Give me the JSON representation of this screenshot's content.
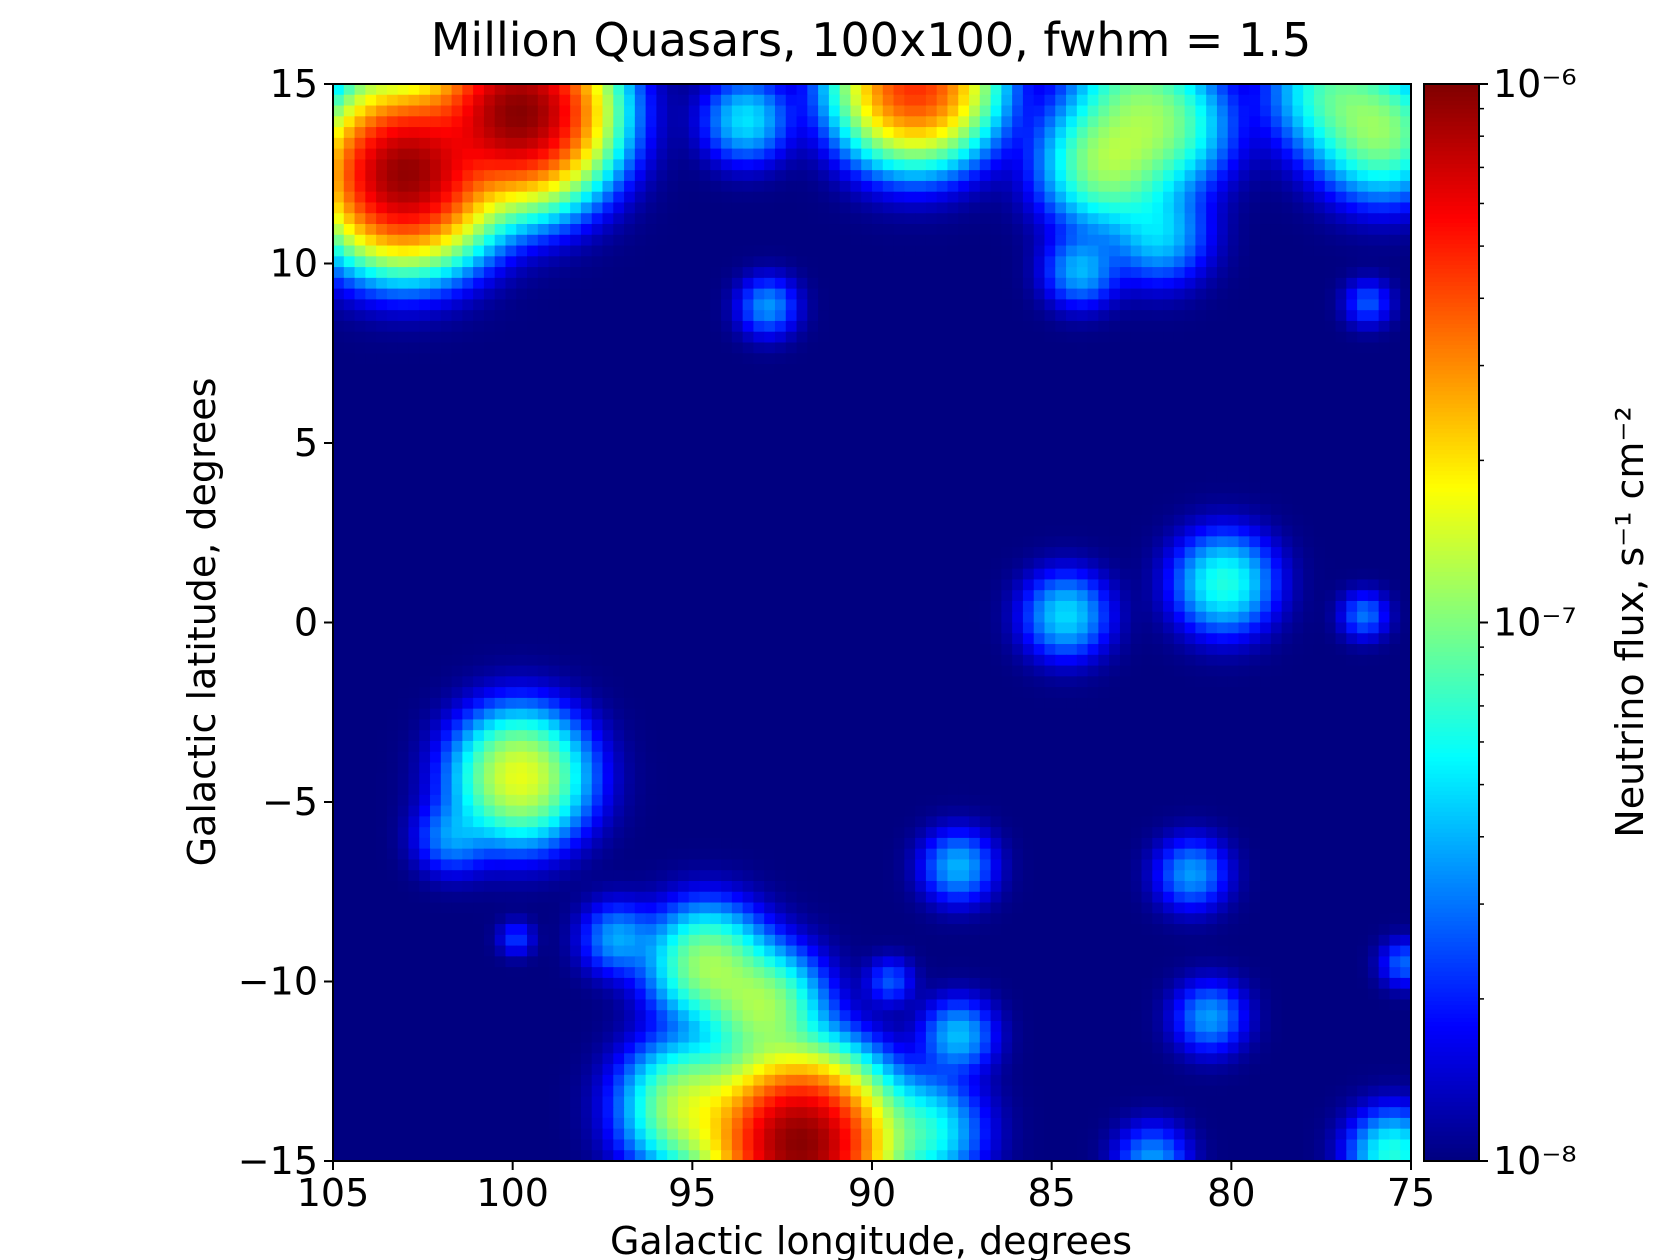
{
  "chart_data": {
    "type": "heatmap",
    "title": "Million Quasars, 100x100, fwhm = 1.5",
    "xlabel": "Galactic longitude, degrees",
    "ylabel": "Galactic latitude, degrees",
    "xlim": [
      105,
      75
    ],
    "ylim": [
      -15,
      15
    ],
    "x_ticks": [
      105,
      100,
      95,
      90,
      85,
      80,
      75
    ],
    "y_ticks": [
      15,
      10,
      5,
      0,
      -5,
      -10,
      -15
    ],
    "x_tick_labels": [
      "105",
      "100",
      "95",
      "90",
      "85",
      "80",
      "75"
    ],
    "y_tick_labels": [
      "15",
      "10",
      "5",
      "0",
      "−5",
      "−10",
      "−15"
    ],
    "grid": {
      "nx": 100,
      "ny": 100
    },
    "colorbar": {
      "label": "Neutrino flux, s⁻¹ cm⁻²",
      "scale": "log",
      "vmin": 1e-08,
      "vmax": 1e-06,
      "ticks": [
        1e-08,
        1e-07,
        1e-06
      ],
      "tick_labels": [
        "10⁻⁸",
        "10⁻⁷",
        "10⁻⁶"
      ],
      "colormap": "jet"
    },
    "background_flux": 1e-08,
    "sources": [
      {
        "l": 103.0,
        "b": 12.5,
        "peak": 9e-07,
        "sigma": 1.2
      },
      {
        "l": 99.8,
        "b": 14.2,
        "peak": 9.5e-07,
        "sigma": 1.2
      },
      {
        "l": 88.8,
        "b": 15.0,
        "peak": 4.5e-07,
        "sigma": 1.1
      },
      {
        "l": 104.0,
        "b": 15.0,
        "peak": 2.5e-08,
        "sigma": 0.5
      },
      {
        "l": 93.5,
        "b": 14.0,
        "peak": 4e-08,
        "sigma": 0.7
      },
      {
        "l": 83.5,
        "b": 12.8,
        "peak": 1e-07,
        "sigma": 1.0
      },
      {
        "l": 81.8,
        "b": 13.8,
        "peak": 7e-08,
        "sigma": 1.0
      },
      {
        "l": 82.8,
        "b": 15.0,
        "peak": 5e-08,
        "sigma": 1.0
      },
      {
        "l": 82.0,
        "b": 10.8,
        "peak": 3.5e-08,
        "sigma": 0.8
      },
      {
        "l": 84.2,
        "b": 9.8,
        "peak": 3e-08,
        "sigma": 0.6
      },
      {
        "l": 75.8,
        "b": 13.6,
        "peak": 9e-08,
        "sigma": 1.0
      },
      {
        "l": 77.2,
        "b": 14.8,
        "peak": 6e-08,
        "sigma": 1.0
      },
      {
        "l": 92.9,
        "b": 8.8,
        "peak": 2.5e-08,
        "sigma": 0.5
      },
      {
        "l": 76.2,
        "b": 8.9,
        "peak": 1.6e-08,
        "sigma": 0.4
      },
      {
        "l": 80.2,
        "b": 1.1,
        "peak": 5.5e-08,
        "sigma": 0.8
      },
      {
        "l": 84.6,
        "b": 0.2,
        "peak": 3.8e-08,
        "sigma": 0.7
      },
      {
        "l": 76.3,
        "b": 0.2,
        "peak": 2e-08,
        "sigma": 0.4
      },
      {
        "l": 99.8,
        "b": -4.3,
        "peak": 1.5e-07,
        "sigma": 1.0
      },
      {
        "l": 101.7,
        "b": -6.0,
        "peak": 2.3e-08,
        "sigma": 0.6
      },
      {
        "l": 87.6,
        "b": -6.8,
        "peak": 3e-08,
        "sigma": 0.6
      },
      {
        "l": 81.1,
        "b": -7.0,
        "peak": 2.6e-08,
        "sigma": 0.6
      },
      {
        "l": 97.1,
        "b": -8.8,
        "peak": 2.7e-08,
        "sigma": 0.6
      },
      {
        "l": 99.9,
        "b": -8.8,
        "peak": 1.3e-08,
        "sigma": 0.3
      },
      {
        "l": 94.6,
        "b": -9.5,
        "peak": 1e-07,
        "sigma": 0.9
      },
      {
        "l": 93.0,
        "b": -10.7,
        "peak": 1e-07,
        "sigma": 0.9
      },
      {
        "l": 89.5,
        "b": -10.0,
        "peak": 1.6e-08,
        "sigma": 0.4
      },
      {
        "l": 80.6,
        "b": -11.0,
        "peak": 2.6e-08,
        "sigma": 0.6
      },
      {
        "l": 87.6,
        "b": -11.5,
        "peak": 3.2e-08,
        "sigma": 0.6
      },
      {
        "l": 75.2,
        "b": -9.5,
        "peak": 1.8e-08,
        "sigma": 0.4
      },
      {
        "l": 95.1,
        "b": -13.5,
        "peak": 1.2e-07,
        "sigma": 1.0
      },
      {
        "l": 92.0,
        "b": -14.5,
        "peak": 9.5e-07,
        "sigma": 1.2
      },
      {
        "l": 88.5,
        "b": -14.2,
        "peak": 5e-08,
        "sigma": 0.9
      },
      {
        "l": 82.2,
        "b": -15.0,
        "peak": 2.6e-08,
        "sigma": 0.6
      },
      {
        "l": 75.5,
        "b": -14.8,
        "peak": 5.5e-08,
        "sigma": 0.7
      }
    ]
  }
}
